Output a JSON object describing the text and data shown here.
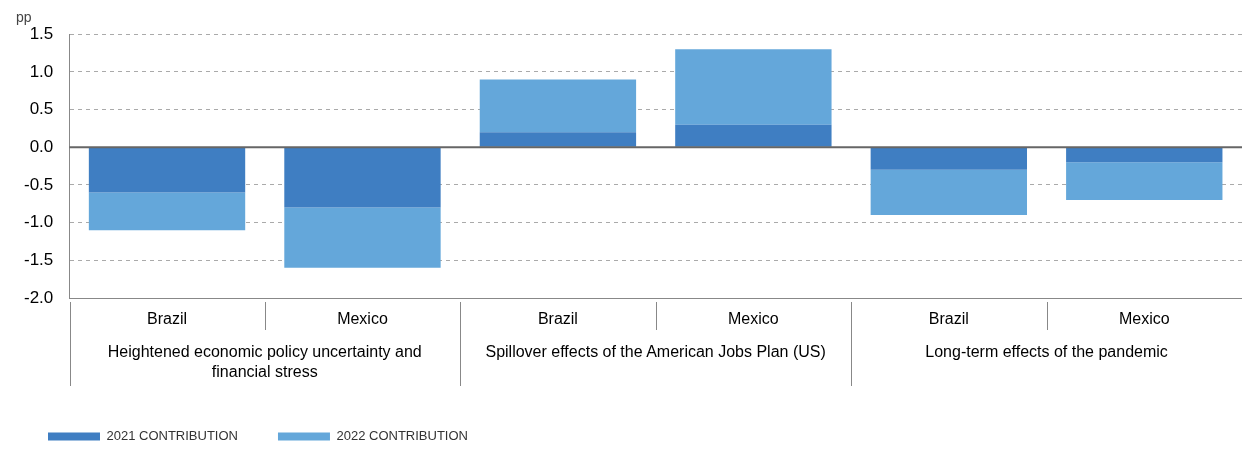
{
  "chart_data": {
    "type": "bar",
    "stacked": true,
    "ylabel": "pp",
    "categories": [
      "Brazil",
      "Mexico",
      "Brazil",
      "Mexico",
      "Brazil",
      "Mexico"
    ],
    "series": [
      {
        "name": "2021 CONTRIBUTION",
        "color": "#3f7ec2",
        "values": [
          -0.6,
          -0.8,
          0.2,
          0.3,
          -0.3,
          -0.2
        ]
      },
      {
        "name": "2022 CONTRIBUTION",
        "color": "#64a7da",
        "values": [
          -0.5,
          -0.8,
          0.7,
          1.0,
          -0.6,
          -0.5
        ]
      }
    ],
    "ylim": [
      -2.0,
      1.5
    ],
    "yticks": [
      {
        "value": -2,
        "label": "-2.0"
      },
      {
        "value": -1.5,
        "label": "-1.5"
      },
      {
        "value": -1,
        "label": "-1.0"
      },
      {
        "value": -0.5,
        "label": "-0.5"
      },
      {
        "value": 0,
        "label": "0.0"
      },
      {
        "value": 0.5,
        "label": "0.5"
      },
      {
        "value": 1,
        "label": "1.0"
      },
      {
        "value": 1.5,
        "label": "1.5"
      }
    ],
    "grid": "y",
    "legend": "bottom left",
    "ref_lines": [
      {
        "axis": "y",
        "value": 0,
        "color": "#666666",
        "line_style": "solid"
      }
    ],
    "annotations": [
      "Heightened economic policy uncertainty and\nfinancial stress",
      "Spillover effects of the American Jobs Plan (US)",
      "Long-term effects of the pandemic"
    ]
  }
}
